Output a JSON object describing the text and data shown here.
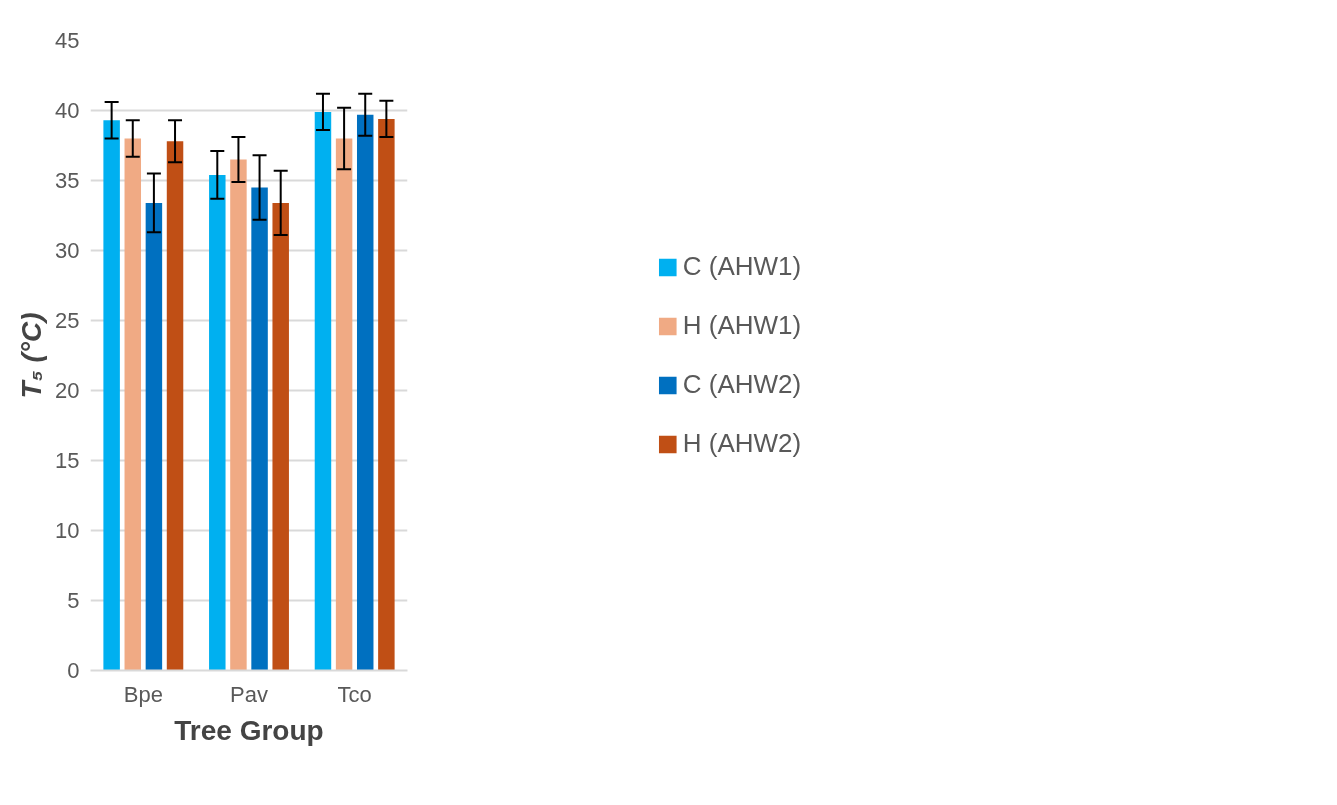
{
  "chart_data": {
    "type": "bar",
    "xlabel": "Tree Group",
    "ylabel": "T₅ (°C)",
    "categories": [
      "Bpe",
      "Pav",
      "Tco"
    ],
    "series": [
      {
        "name": "C (AHW1)",
        "color": "#00b0f0",
        "values": [
          39.3,
          35.4,
          39.9
        ],
        "errors": [
          1.3,
          1.7,
          1.3
        ]
      },
      {
        "name": "H (AHW1)",
        "color": "#f0aa84",
        "values": [
          38.0,
          36.5,
          38.0
        ],
        "errors": [
          1.3,
          1.6,
          2.2
        ]
      },
      {
        "name": "C (AHW2)",
        "color": "#0070c0",
        "values": [
          33.4,
          34.5,
          39.7
        ],
        "errors": [
          2.1,
          2.3,
          1.5
        ]
      },
      {
        "name": "H (AHW2)",
        "color": "#c04f15",
        "values": [
          37.8,
          33.4,
          39.4
        ],
        "errors": [
          1.5,
          2.3,
          1.3
        ]
      }
    ],
    "ylim": [
      0,
      45
    ],
    "yticks": [
      0,
      5,
      10,
      15,
      20,
      25,
      30,
      35,
      40,
      45
    ],
    "grid": "y",
    "legend": "right"
  }
}
